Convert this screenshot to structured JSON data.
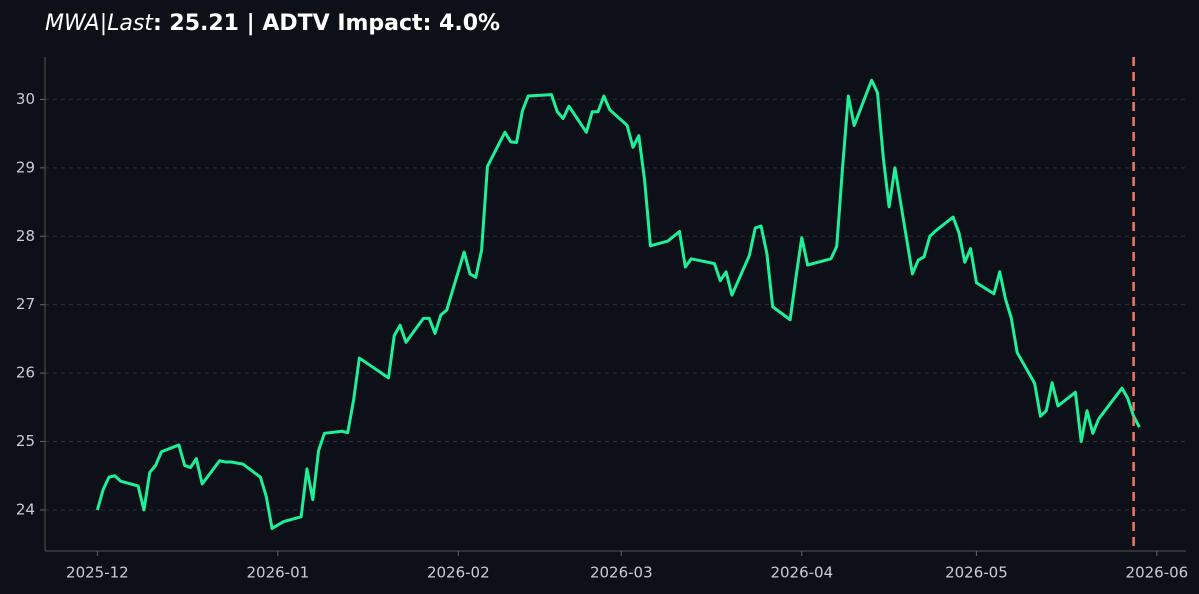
{
  "chart_data": {
    "type": "line",
    "title_label": "MWA|Last",
    "title_rest": ": 25.21 | ADTV Impact: 4.0%",
    "x": [
      "2025-12-01",
      "2025-12-02",
      "2025-12-03",
      "2025-12-04",
      "2025-12-05",
      "2025-12-08",
      "2025-12-09",
      "2025-12-10",
      "2025-12-11",
      "2025-12-12",
      "2025-12-15",
      "2025-12-16",
      "2025-12-17",
      "2025-12-18",
      "2025-12-19",
      "2025-12-22",
      "2025-12-23",
      "2025-12-24",
      "2025-12-26",
      "2025-12-29",
      "2025-12-30",
      "2025-12-31",
      "2026-01-02",
      "2026-01-05",
      "2026-01-06",
      "2026-01-07",
      "2026-01-08",
      "2026-01-09",
      "2026-01-12",
      "2026-01-13",
      "2026-01-14",
      "2026-01-15",
      "2026-01-20",
      "2026-01-21",
      "2026-01-22",
      "2026-01-23",
      "2026-01-26",
      "2026-01-27",
      "2026-01-28",
      "2026-01-29",
      "2026-01-30",
      "2026-02-02",
      "2026-02-03",
      "2026-02-04",
      "2026-02-05",
      "2026-02-06",
      "2026-02-09",
      "2026-02-10",
      "2026-02-11",
      "2026-02-12",
      "2026-02-13",
      "2026-02-17",
      "2026-02-18",
      "2026-02-19",
      "2026-02-20",
      "2026-02-23",
      "2026-02-24",
      "2026-02-25",
      "2026-02-26",
      "2026-02-27",
      "2026-03-02",
      "2026-03-03",
      "2026-03-04",
      "2026-03-05",
      "2026-03-06",
      "2026-03-09",
      "2026-03-11",
      "2026-03-12",
      "2026-03-13",
      "2026-03-17",
      "2026-03-18",
      "2026-03-19",
      "2026-03-20",
      "2026-03-23",
      "2026-03-24",
      "2026-03-25",
      "2026-03-26",
      "2026-03-27",
      "2026-03-30",
      "2026-03-31",
      "2026-04-01",
      "2026-04-02",
      "2026-04-06",
      "2026-04-07",
      "2026-04-08",
      "2026-04-09",
      "2026-04-10",
      "2026-04-13",
      "2026-04-14",
      "2026-04-15",
      "2026-04-16",
      "2026-04-17",
      "2026-04-20",
      "2026-04-21",
      "2026-04-22",
      "2026-04-23",
      "2026-04-24",
      "2026-04-27",
      "2026-04-28",
      "2026-04-29",
      "2026-04-30",
      "2026-05-01",
      "2026-05-04",
      "2026-05-05",
      "2026-05-06",
      "2026-05-07",
      "2026-05-08",
      "2026-05-11",
      "2026-05-12",
      "2026-05-13",
      "2026-05-14",
      "2026-05-15",
      "2026-05-18",
      "2026-05-19",
      "2026-05-20",
      "2026-05-21",
      "2026-05-22",
      "2026-05-26",
      "2026-05-27",
      "2026-05-28",
      "2026-05-29"
    ],
    "series": [
      {
        "color": "#1ef09a",
        "values": [
          24.0,
          24.3,
          24.48,
          24.5,
          24.42,
          24.35,
          24.0,
          24.55,
          24.65,
          24.85,
          24.95,
          24.65,
          24.62,
          24.75,
          24.38,
          24.72,
          24.7,
          24.7,
          24.67,
          24.48,
          24.2,
          23.73,
          23.83,
          23.9,
          24.6,
          24.15,
          24.87,
          25.12,
          25.15,
          25.13,
          25.6,
          26.22,
          25.93,
          26.55,
          26.7,
          26.45,
          26.8,
          26.8,
          26.58,
          26.85,
          26.92,
          27.77,
          27.45,
          27.4,
          27.8,
          29.02,
          29.52,
          29.38,
          29.37,
          29.83,
          30.05,
          30.07,
          29.82,
          29.72,
          29.9,
          29.52,
          29.82,
          29.82,
          30.05,
          29.85,
          29.62,
          29.3,
          29.47,
          28.82,
          27.86,
          27.93,
          28.07,
          27.55,
          27.67,
          27.6,
          27.35,
          27.48,
          27.14,
          27.72,
          28.12,
          28.15,
          27.75,
          26.97,
          26.78,
          27.4,
          27.98,
          27.58,
          27.67,
          27.85,
          29.0,
          30.05,
          29.62,
          30.28,
          30.1,
          29.15,
          28.43,
          29.0,
          27.45,
          27.65,
          27.7,
          28.0,
          28.08,
          28.28,
          28.05,
          27.62,
          27.82,
          27.32,
          27.16,
          27.48,
          27.08,
          26.8,
          26.3,
          25.85,
          25.37,
          25.45,
          25.86,
          25.52,
          25.72,
          25.0,
          25.45,
          25.12,
          25.33,
          25.78,
          25.63,
          25.37,
          25.21
        ]
      }
    ],
    "vline": {
      "x": "2026-05-28",
      "color": "#f07a62"
    },
    "xlim": [
      "2025-11-22",
      "2026-06-06"
    ],
    "xticks": [
      "2025-12",
      "2026-01",
      "2026-02",
      "2026-03",
      "2026-04",
      "2026-05",
      "2026-06"
    ],
    "ylim": [
      23.4,
      30.62
    ],
    "yticks": [
      24,
      25,
      26,
      27,
      28,
      29,
      30
    ],
    "grid": true
  }
}
